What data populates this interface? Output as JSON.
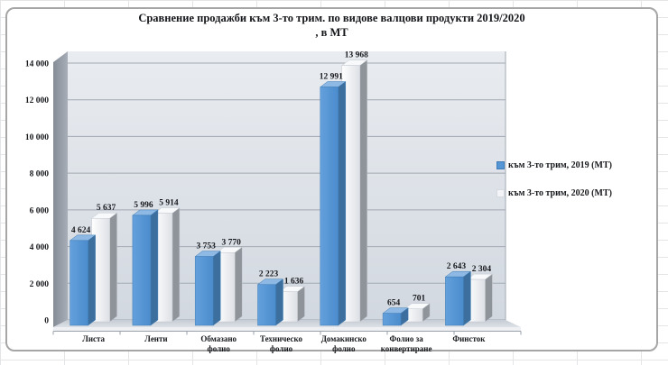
{
  "chart_data": {
    "type": "bar",
    "style": "3d-clustered-column",
    "title_line1": "Сравнение продажби към 3-то трим. по видове валцови продукти 2019/2020",
    "title_line2": ", в МТ",
    "categories": [
      "Листа",
      "Ленти",
      "Обмазано фолио",
      "Техническо фолио",
      "Домакинско фолио",
      "Фолио за конвертиране",
      "Финсток"
    ],
    "series": [
      {
        "name": "към 3-то трим, 2019 (МТ)",
        "color": "#5596d6",
        "values": [
          4624,
          5996,
          3753,
          2223,
          12991,
          654,
          2643
        ],
        "data_labels": [
          "4 624",
          "5 996",
          "3 753",
          "2 223",
          "12 991",
          "654",
          "2 643"
        ]
      },
      {
        "name": "към 3-то трим, 2020 (МТ)",
        "color": "#f2f4f7",
        "values": [
          5637,
          5914,
          3770,
          1636,
          13968,
          701,
          2304
        ],
        "data_labels": [
          "5 637",
          "5 914",
          "3 770",
          "1 636",
          "13 968",
          "701",
          "2 304"
        ]
      }
    ],
    "y_axis": {
      "ticks": [
        "0",
        "2 000",
        "4 000",
        "6 000",
        "8 000",
        "10 000",
        "12 000",
        "14 000"
      ],
      "min": 0,
      "max": 14000,
      "step": 2000
    },
    "legend_position": "right",
    "grid": true
  },
  "colors": {
    "series1_front": "#5596d6",
    "series1_side": "#3d6f9e",
    "series1_top": "#8db9e4",
    "series2_front": "#f2f4f7",
    "series2_side": "#8f949b",
    "series2_top": "#f7f9fb",
    "wall": "#dfe3e9",
    "gridline": "#a2a9b2"
  }
}
